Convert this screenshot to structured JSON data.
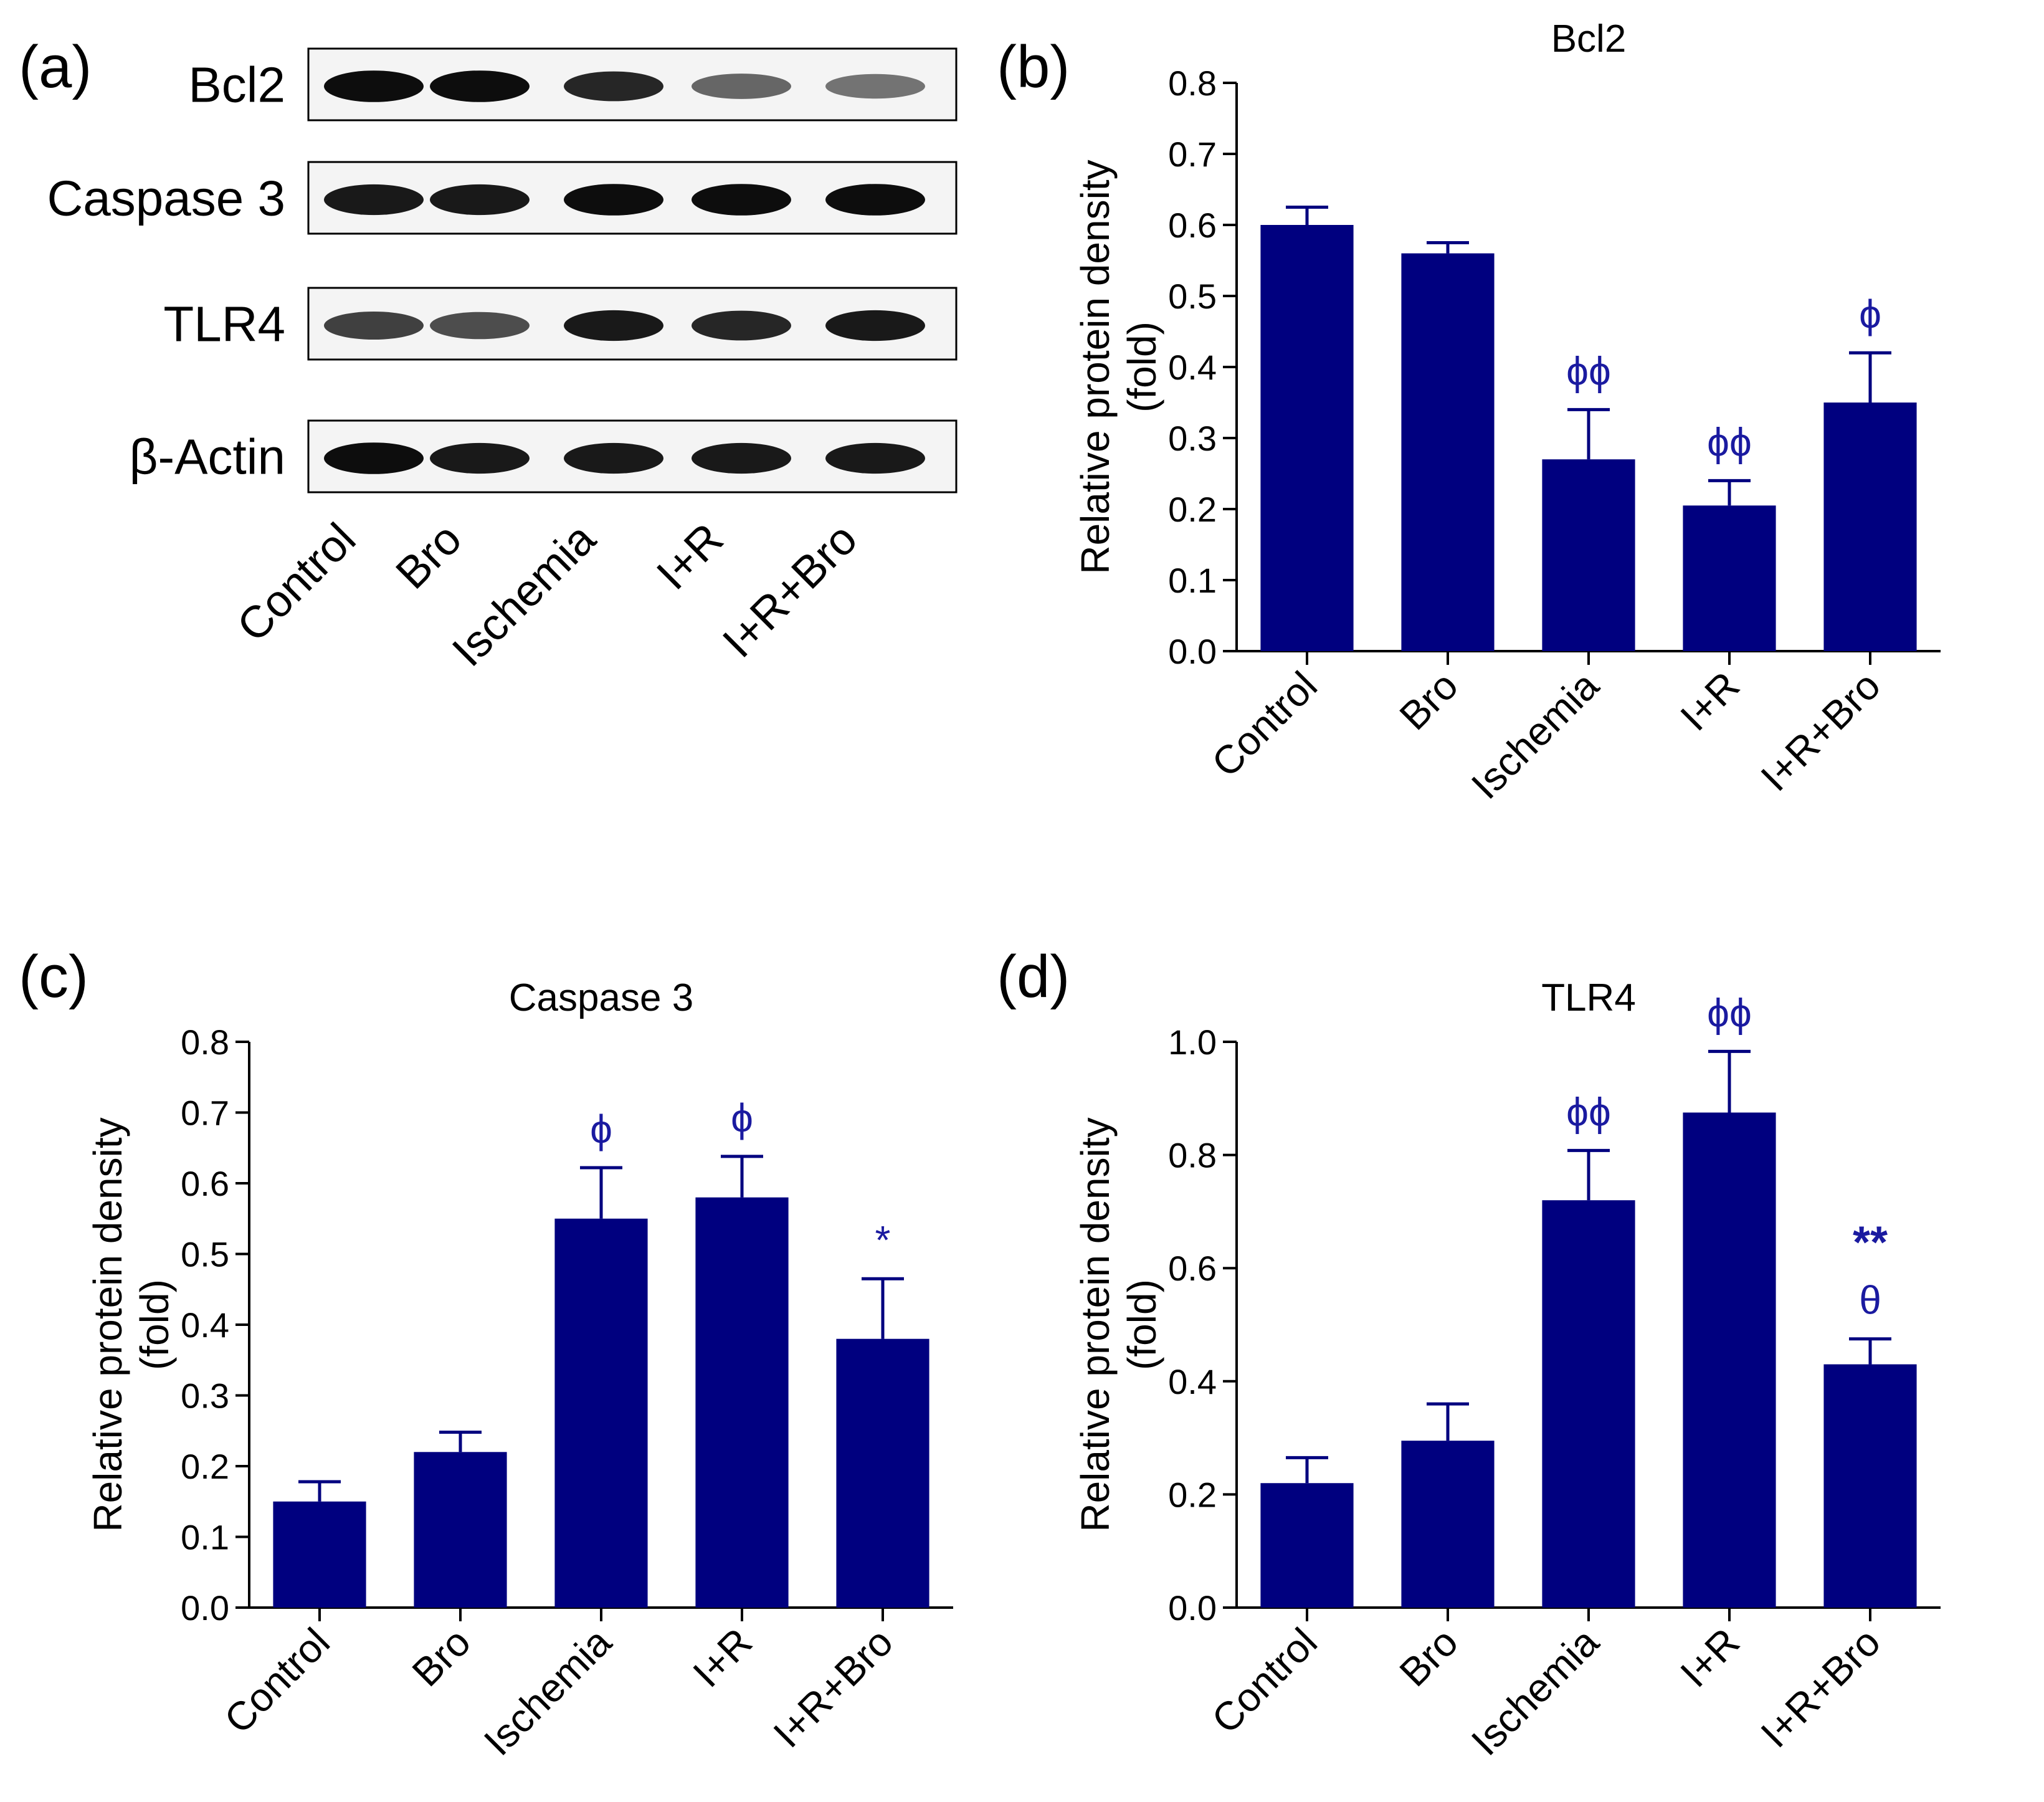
{
  "panel_labels": [
    "(a)",
    "(b)",
    "(c)",
    "(d)"
  ],
  "colors": {
    "bar": "#00007f",
    "annotation": "#1a1aa0",
    "axis": "#000000"
  },
  "western_blot": {
    "rows": [
      "Bcl2",
      "Caspase 3",
      "TLR4",
      "β-Actin"
    ],
    "lanes": [
      "Control",
      "Bro",
      "Ischemia",
      "I+R",
      "I+R+Bro"
    ],
    "band_intensity": [
      [
        0.95,
        0.95,
        0.85,
        0.6,
        0.55
      ],
      [
        0.9,
        0.9,
        0.95,
        0.95,
        0.95
      ],
      [
        0.75,
        0.7,
        0.9,
        0.85,
        0.9
      ],
      [
        0.95,
        0.9,
        0.9,
        0.9,
        0.9
      ]
    ]
  },
  "chart_data": [
    {
      "type": "bar",
      "title": "Bcl2",
      "ylabel": [
        "Relative protein density",
        "(fold)"
      ],
      "categories": [
        "Control",
        "Bro",
        "Ischemia",
        "I+R",
        "I+R+Bro"
      ],
      "values": [
        0.6,
        0.56,
        0.27,
        0.205,
        0.35
      ],
      "errors": [
        0.025,
        0.015,
        0.07,
        0.035,
        0.07
      ],
      "annotations": [
        [
          "",
          ""
        ],
        [
          "",
          ""
        ],
        [
          "ϕϕ",
          ""
        ],
        [
          "ϕϕ",
          ""
        ],
        [
          "ϕ",
          ""
        ]
      ],
      "ylim": [
        0,
        0.8
      ],
      "yticks": [
        "0.0",
        "0.1",
        "0.2",
        "0.3",
        "0.4",
        "0.5",
        "0.6",
        "0.7",
        "0.8"
      ]
    },
    {
      "type": "bar",
      "title": "Caspase 3",
      "ylabel": [
        "Relative protein density",
        "(fold)"
      ],
      "categories": [
        "Control",
        "Bro",
        "Ischemia",
        "I+R",
        "I+R+Bro"
      ],
      "values": [
        0.15,
        0.22,
        0.55,
        0.58,
        0.38
      ],
      "errors": [
        0.028,
        0.028,
        0.072,
        0.058,
        0.085
      ],
      "annotations": [
        [
          "",
          ""
        ],
        [
          "",
          ""
        ],
        [
          "ϕ",
          ""
        ],
        [
          "ϕ",
          ""
        ],
        [
          "*",
          ""
        ]
      ],
      "ylim": [
        0,
        0.8
      ],
      "yticks": [
        "0.0",
        "0.1",
        "0.2",
        "0.3",
        "0.4",
        "0.5",
        "0.6",
        "0.7",
        "0.8"
      ]
    },
    {
      "type": "bar",
      "title": "TLR4",
      "ylabel": [
        "Relative protein density",
        "(fold)"
      ],
      "categories": [
        "Control",
        "Bro",
        "Ischemia",
        "I+R",
        "I+R+Bro"
      ],
      "values": [
        0.22,
        0.295,
        0.72,
        0.875,
        0.43
      ],
      "errors": [
        0.045,
        0.065,
        0.088,
        0.108,
        0.045
      ],
      "annotations": [
        [
          "",
          ""
        ],
        [
          "",
          ""
        ],
        [
          "ϕϕ",
          ""
        ],
        [
          "ϕϕ",
          ""
        ],
        [
          "θ",
          "**"
        ]
      ],
      "ylim": [
        0,
        1.0
      ],
      "yticks": [
        "0.0",
        "0.2",
        "0.4",
        "0.6",
        "0.8",
        "1.0"
      ]
    }
  ]
}
